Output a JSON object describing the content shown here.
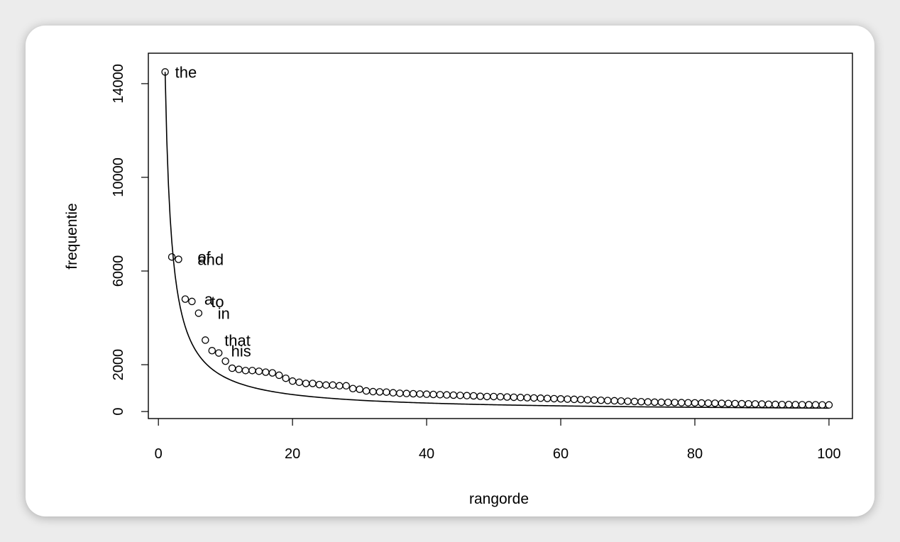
{
  "chart_data": {
    "type": "scatter",
    "title": "",
    "xlabel": "rangorde",
    "ylabel": "frequentie",
    "xlim": [
      -1.5,
      103.5
    ],
    "ylim": [
      -300,
      15300
    ],
    "xticks": [
      0,
      20,
      40,
      60,
      80,
      100
    ],
    "yticks": [
      0,
      2000,
      6000,
      10000,
      14000
    ],
    "x_tick_labels": [
      "0",
      "20",
      "40",
      "60",
      "80",
      "100"
    ],
    "y_tick_labels": [
      "0",
      "2000",
      "6000",
      "10000",
      "14000"
    ],
    "grid": false,
    "series": [
      {
        "style": "points",
        "x": [
          1,
          2,
          3,
          4,
          5,
          6,
          7,
          8,
          9,
          10,
          11,
          12,
          13,
          14,
          15,
          16,
          17,
          18,
          19,
          20,
          21,
          22,
          23,
          24,
          25,
          26,
          27,
          28,
          29,
          30,
          31,
          32,
          33,
          34,
          35,
          36,
          37,
          38,
          39,
          40,
          41,
          42,
          43,
          44,
          45,
          46,
          47,
          48,
          49,
          50,
          51,
          52,
          53,
          54,
          55,
          56,
          57,
          58,
          59,
          60,
          61,
          62,
          63,
          64,
          65,
          66,
          67,
          68,
          69,
          70,
          71,
          72,
          73,
          74,
          75,
          76,
          77,
          78,
          79,
          80,
          81,
          82,
          83,
          84,
          85,
          86,
          87,
          88,
          89,
          90,
          91,
          92,
          93,
          94,
          95,
          96,
          97,
          98,
          99,
          100
        ],
        "y": [
          14500,
          6600,
          6500,
          4800,
          4700,
          4200,
          3050,
          2600,
          2500,
          2150,
          1850,
          1800,
          1750,
          1750,
          1720,
          1680,
          1650,
          1550,
          1420,
          1300,
          1250,
          1200,
          1200,
          1150,
          1130,
          1130,
          1100,
          1100,
          980,
          950,
          880,
          850,
          840,
          830,
          800,
          780,
          770,
          760,
          750,
          740,
          730,
          720,
          710,
          700,
          690,
          680,
          670,
          650,
          640,
          640,
          630,
          620,
          610,
          600,
          590,
          580,
          570,
          560,
          550,
          540,
          530,
          520,
          510,
          500,
          490,
          480,
          470,
          460,
          450,
          440,
          430,
          420,
          410,
          400,
          395,
          390,
          385,
          380,
          375,
          370,
          365,
          360,
          355,
          350,
          345,
          340,
          335,
          330,
          325,
          320,
          310,
          305,
          300,
          298,
          295,
          292,
          290,
          288,
          285,
          282
        ]
      },
      {
        "style": "line",
        "formula": "14500 / rank",
        "coefficient": 14500
      }
    ],
    "annotations": [
      {
        "text": "the",
        "x": 1,
        "y": 14500
      },
      {
        "text": "of",
        "x": 5,
        "y": 6600
      },
      {
        "text": "and",
        "x": 5,
        "y": 6500
      },
      {
        "text": "a",
        "x": 6,
        "y": 4800
      },
      {
        "text": "to",
        "x": 7,
        "y": 4700
      },
      {
        "text": "in",
        "x": 8,
        "y": 4200
      },
      {
        "text": "that",
        "x": 9,
        "y": 3050
      },
      {
        "text": "his",
        "x": 10,
        "y": 2600
      }
    ]
  }
}
